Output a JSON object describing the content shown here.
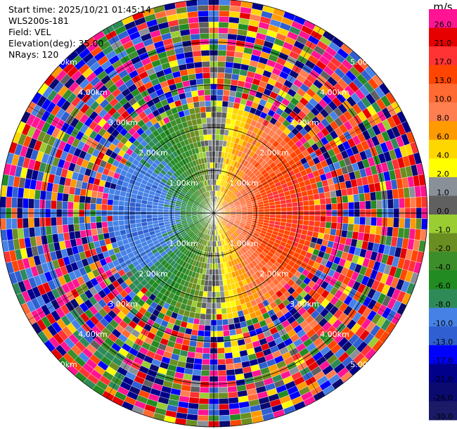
{
  "header": {
    "start_time": "Start time: 2025/10/21 01:45:14",
    "instrument": "WLS200s-181",
    "field": "Field: VEL",
    "elevation": "Elevation(deg): 35.00",
    "nrays": "NRays: 120"
  },
  "chart_data": {
    "type": "ppi",
    "field": "VEL",
    "units": "m/s",
    "elevation_deg": 35.0,
    "n_rays": 120,
    "range_ring_labels": [
      "1.00km",
      "2.00km",
      "3.00km",
      "4.00km",
      "5.00km"
    ],
    "range_rings_km": [
      1,
      2,
      3,
      4,
      5
    ],
    "max_range_km": 5,
    "colorbar": {
      "title": "m/s",
      "tick_labels": [
        "26.0",
        "21.0",
        "17.0",
        "13.0",
        "10.0",
        "8.0",
        "6.0",
        "4.0",
        "2.0",
        "1.0",
        "0.0",
        "-1.0",
        "-2.0",
        "-4.0",
        "-6.0",
        "-8.0",
        "-10.0",
        "-13.0",
        "-17.0",
        "-21.0",
        "-26.0",
        "-30.0"
      ],
      "colors": [
        "#ff1493",
        "#e60000",
        "#ff3333",
        "#ff4500",
        "#ff6a33",
        "#ff7f50",
        "#ff9a00",
        "#ffd700",
        "#ffff00",
        "#8a9098",
        "#606060",
        "#9acd32",
        "#6b8e23",
        "#3b8e2a",
        "#228b22",
        "#2e8b57",
        "#4682e6",
        "#2f5fd0",
        "#0000ff",
        "#00008b",
        "#0a0a70",
        "#1a1a66"
      ]
    },
    "velocity_pattern": "dipole: positive (receding) to the east, negative (approaching) to the west, noisy beyond ~2.5 km"
  }
}
